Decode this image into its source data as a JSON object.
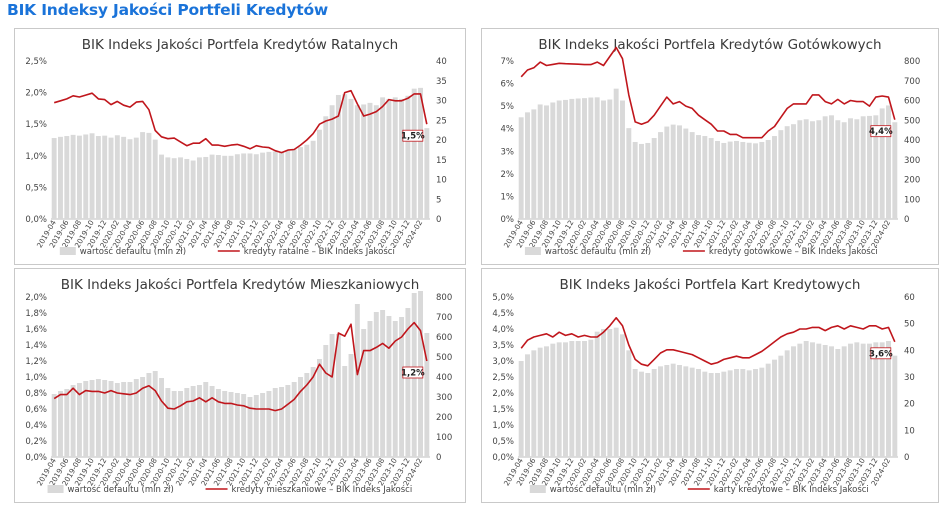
{
  "page": {
    "title": "BIK Indeksy Jakości Portfeli Kredytów"
  },
  "chart_data": [
    {
      "id": "ratalne",
      "type": "bar+line",
      "title": "BIK Indeks Jakości Portfela Kredytów Ratalnych",
      "categories": [
        "2019-04",
        "2019-05",
        "2019-06",
        "2019-07",
        "2019-08",
        "2019-09",
        "2019-10",
        "2019-11",
        "2019-12",
        "2020-01",
        "2020-02",
        "2020-03",
        "2020-04",
        "2020-05",
        "2020-06",
        "2020-07",
        "2020-08",
        "2020-09",
        "2020-10",
        "2020-11",
        "2020-12",
        "2021-01",
        "2021-02",
        "2021-03",
        "2021-04",
        "2021-05",
        "2021-06",
        "2021-07",
        "2021-08",
        "2021-09",
        "2021-10",
        "2021-11",
        "2021-12",
        "2022-01",
        "2022-02",
        "2022-03",
        "2022-04",
        "2022-05",
        "2022-06",
        "2022-07",
        "2022-08",
        "2022-09",
        "2022-10",
        "2022-11",
        "2022-12",
        "2023-01",
        "2023-02",
        "2023-03",
        "2023-04",
        "2023-05",
        "2023-06",
        "2023-07",
        "2023-08",
        "2023-09",
        "2023-10",
        "2023-11",
        "2023-12",
        "2024-01",
        "2024-02",
        "2024-03"
      ],
      "x_tick_labels": [
        "2019-04",
        "2019-06",
        "2019-08",
        "2019-10",
        "2019-12",
        "2020-02",
        "2020-04",
        "2020-06",
        "2020-08",
        "2020-10",
        "2020-12",
        "2021-02",
        "2021-04",
        "2021-06",
        "2021-08",
        "2021-10",
        "2021-12",
        "2022-02",
        "2022-04",
        "2022-06",
        "2022-08",
        "2022-10",
        "2022-12",
        "2023-02",
        "2023-04",
        "2023-06",
        "2023-08",
        "2023-10",
        "2023-12",
        "2024-02"
      ],
      "bars_name": "wartość defaultu (mln zł)",
      "line_name": "kredyty ratalne – BIK Indeks Jakości",
      "bar_values": [
        20.5,
        20.8,
        21,
        21.3,
        21.1,
        21.4,
        21.7,
        21,
        21.1,
        20.6,
        21.2,
        20.8,
        20.2,
        20.6,
        22,
        21.8,
        20.1,
        16.3,
        15.6,
        15.4,
        15.6,
        15.2,
        14.8,
        15.6,
        15.7,
        16.3,
        16.2,
        16,
        16,
        16.4,
        16.6,
        16.6,
        16.4,
        16.8,
        17,
        17.1,
        16.8,
        17.2,
        17.6,
        18.2,
        18.8,
        19.8,
        22.6,
        26,
        28.8,
        31.4,
        31.6,
        30.4,
        28.8,
        29,
        29.4,
        28.8,
        30.8,
        30.4,
        30.8,
        30.4,
        31.2,
        33,
        33.2,
        23
      ],
      "line_values": [
        1.84,
        1.87,
        1.9,
        1.95,
        1.93,
        1.96,
        1.99,
        1.9,
        1.89,
        1.81,
        1.86,
        1.8,
        1.77,
        1.85,
        1.86,
        1.73,
        1.4,
        1.3,
        1.27,
        1.28,
        1.22,
        1.16,
        1.2,
        1.2,
        1.27,
        1.17,
        1.17,
        1.15,
        1.17,
        1.18,
        1.15,
        1.11,
        1.16,
        1.14,
        1.13,
        1.08,
        1.05,
        1.09,
        1.1,
        1.17,
        1.25,
        1.35,
        1.5,
        1.55,
        1.58,
        1.63,
        2.0,
        2.03,
        1.82,
        1.63,
        1.66,
        1.7,
        1.78,
        1.89,
        1.87,
        1.87,
        1.91,
        1.98,
        1.98,
        1.5
      ],
      "y_left": {
        "min": 0,
        "max": 2.5,
        "ticks": [
          "0,0%",
          "0,5%",
          "1,0%",
          "1,5%",
          "2,0%",
          "2,5%"
        ]
      },
      "y_right": {
        "min": 0,
        "max": 40,
        "ticks": [
          "0",
          "5",
          "10",
          "15",
          "20",
          "25",
          "30",
          "35",
          "40"
        ]
      },
      "last_label": "1,5%"
    },
    {
      "id": "gotowkowe",
      "type": "bar+line",
      "title": "BIK Indeks Jakości Portfela Kredytów Gotówkowych",
      "categories": [
        "2019-04",
        "2019-05",
        "2019-06",
        "2019-07",
        "2019-08",
        "2019-09",
        "2019-10",
        "2019-11",
        "2019-12",
        "2020-01",
        "2020-02",
        "2020-03",
        "2020-04",
        "2020-05",
        "2020-06",
        "2020-07",
        "2020-08",
        "2020-09",
        "2020-10",
        "2020-11",
        "2020-12",
        "2021-01",
        "2021-02",
        "2021-03",
        "2021-04",
        "2021-05",
        "2021-06",
        "2021-07",
        "2021-08",
        "2021-09",
        "2021-10",
        "2021-11",
        "2021-12",
        "2022-01",
        "2022-02",
        "2022-03",
        "2022-04",
        "2022-05",
        "2022-06",
        "2022-07",
        "2022-08",
        "2022-09",
        "2022-10",
        "2022-11",
        "2022-12",
        "2023-01",
        "2023-02",
        "2023-03",
        "2023-04",
        "2023-05",
        "2023-06",
        "2023-07",
        "2023-08",
        "2023-09",
        "2023-10",
        "2023-11",
        "2023-12",
        "2024-01",
        "2024-02",
        "2024-03"
      ],
      "x_tick_labels": [
        "2019-04",
        "2019-06",
        "2019-08",
        "2019-10",
        "2019-12",
        "2020-02",
        "2020-04",
        "2020-06",
        "2020-08",
        "2020-10",
        "2020-12",
        "2021-02",
        "2021-04",
        "2021-06",
        "2021-08",
        "2021-10",
        "2021-12",
        "2022-02",
        "2022-04",
        "2022-06",
        "2022-08",
        "2022-10",
        "2022-12",
        "2023-02",
        "2023-04",
        "2023-06",
        "2023-08",
        "2023-10",
        "2023-12",
        "2024-02"
      ],
      "bars_name": "wartość defaultu (mln zł)",
      "line_name": "kredyty gotówkowe – BIK Indeks Jakości",
      "bar_values": [
        515,
        540,
        555,
        580,
        575,
        590,
        600,
        603,
        608,
        610,
        612,
        615,
        616,
        600,
        605,
        660,
        600,
        460,
        390,
        380,
        385,
        410,
        440,
        468,
        478,
        474,
        458,
        440,
        425,
        420,
        410,
        395,
        385,
        392,
        395,
        390,
        386,
        383,
        390,
        400,
        420,
        450,
        470,
        480,
        500,
        505,
        495,
        500,
        520,
        525,
        500,
        490,
        510,
        505,
        520,
        522,
        525,
        560,
        575,
        490
      ],
      "line_values": [
        6.3,
        6.6,
        6.7,
        6.95,
        6.8,
        6.85,
        6.9,
        6.88,
        6.87,
        6.86,
        6.84,
        6.84,
        6.95,
        6.8,
        7.2,
        7.6,
        7.1,
        5.5,
        4.3,
        4.2,
        4.3,
        4.6,
        5.0,
        5.4,
        5.1,
        5.2,
        5.0,
        4.9,
        4.6,
        4.4,
        4.2,
        3.9,
        3.9,
        3.75,
        3.75,
        3.6,
        3.6,
        3.6,
        3.6,
        3.9,
        4.1,
        4.5,
        4.9,
        5.1,
        5.1,
        5.1,
        5.5,
        5.5,
        5.2,
        5.1,
        5.3,
        5.1,
        5.25,
        5.2,
        5.2,
        5.0,
        5.4,
        5.45,
        5.4,
        4.4
      ],
      "y_left": {
        "min": 0,
        "max": 7,
        "ticks": [
          "0%",
          "1%",
          "2%",
          "3%",
          "4%",
          "5%",
          "6%",
          "7%"
        ]
      },
      "y_right": {
        "min": 0,
        "max": 800,
        "ticks": [
          "0",
          "100",
          "200",
          "300",
          "400",
          "500",
          "600",
          "700",
          "800"
        ]
      },
      "last_label": "4,4%"
    },
    {
      "id": "mieszkaniowe",
      "type": "bar+line",
      "title": "BIK Indeks Jakości Portfela Kredytów Mieszkaniowych",
      "categories": [
        "2019-04",
        "2019-05",
        "2019-06",
        "2019-07",
        "2019-08",
        "2019-09",
        "2019-10",
        "2019-11",
        "2019-12",
        "2020-01",
        "2020-02",
        "2020-03",
        "2020-04",
        "2020-05",
        "2020-06",
        "2020-07",
        "2020-08",
        "2020-09",
        "2020-10",
        "2020-11",
        "2020-12",
        "2021-01",
        "2021-02",
        "2021-03",
        "2021-04",
        "2021-05",
        "2021-06",
        "2021-07",
        "2021-08",
        "2021-09",
        "2021-10",
        "2021-11",
        "2021-12",
        "2022-01",
        "2022-02",
        "2022-03",
        "2022-04",
        "2022-05",
        "2022-06",
        "2022-07",
        "2022-08",
        "2022-09",
        "2022-10",
        "2022-11",
        "2022-12",
        "2023-01",
        "2023-02",
        "2023-03",
        "2023-04",
        "2023-05",
        "2023-06",
        "2023-07",
        "2023-08",
        "2023-09",
        "2023-10",
        "2023-11",
        "2023-12",
        "2024-01",
        "2024-02",
        "2024-03"
      ],
      "x_tick_labels": [
        "2019-04",
        "2019-06",
        "2019-08",
        "2019-10",
        "2019-12",
        "2020-02",
        "2020-04",
        "2020-06",
        "2020-08",
        "2020-10",
        "2020-12",
        "2021-02",
        "2021-04",
        "2021-06",
        "2021-08",
        "2021-10",
        "2021-12",
        "2022-02",
        "2022-04",
        "2022-06",
        "2022-08",
        "2022-10",
        "2022-12",
        "2023-02",
        "2023-04",
        "2023-06",
        "2023-08",
        "2023-10",
        "2023-12",
        "2024-02"
      ],
      "bars_name": "wartość defaultu (mln zł)",
      "line_name": "kredyty mieszkaniowe – BIK Indeks Jakości",
      "bar_values": [
        315,
        330,
        340,
        360,
        370,
        380,
        385,
        390,
        385,
        380,
        370,
        375,
        375,
        390,
        400,
        420,
        430,
        395,
        345,
        330,
        330,
        345,
        355,
        360,
        375,
        355,
        340,
        330,
        325,
        320,
        315,
        300,
        310,
        320,
        330,
        345,
        350,
        360,
        375,
        400,
        420,
        450,
        490,
        560,
        615,
        615,
        455,
        515,
        765,
        640,
        680,
        725,
        735,
        705,
        680,
        700,
        745,
        820,
        830,
        620
      ],
      "line_values": [
        0.73,
        0.78,
        0.78,
        0.86,
        0.78,
        0.83,
        0.82,
        0.82,
        0.8,
        0.83,
        0.8,
        0.79,
        0.78,
        0.8,
        0.86,
        0.89,
        0.83,
        0.7,
        0.61,
        0.6,
        0.64,
        0.69,
        0.7,
        0.74,
        0.69,
        0.74,
        0.69,
        0.67,
        0.67,
        0.65,
        0.64,
        0.61,
        0.6,
        0.6,
        0.6,
        0.58,
        0.6,
        0.66,
        0.72,
        0.82,
        0.9,
        1.0,
        1.16,
        1.05,
        1.0,
        1.55,
        1.51,
        1.66,
        1.03,
        1.33,
        1.33,
        1.37,
        1.42,
        1.36,
        1.45,
        1.5,
        1.6,
        1.68,
        1.58,
        1.2
      ],
      "y_left": {
        "min": 0,
        "max": 2.0,
        "ticks": [
          "0,0%",
          "0,2%",
          "0,4%",
          "0,6%",
          "0,8%",
          "1,0%",
          "1,2%",
          "1,4%",
          "1,6%",
          "1,8%",
          "2,0%"
        ]
      },
      "y_right": {
        "min": 0,
        "max": 800,
        "ticks": [
          "0",
          "100",
          "200",
          "300",
          "400",
          "500",
          "600",
          "700",
          "800"
        ]
      },
      "last_label": "1,2%"
    },
    {
      "id": "karty",
      "type": "bar+line",
      "title": "BIK Indeks Jakości Portfela Kart Kredytowych",
      "categories": [
        "2019-04",
        "2019-05",
        "2019-06",
        "2019-07",
        "2019-08",
        "2019-09",
        "2019-10",
        "2019-11",
        "2019-12",
        "2020-01",
        "2020-02",
        "2020-03",
        "2020-04",
        "2020-05",
        "2020-06",
        "2020-07",
        "2020-08",
        "2020-09",
        "2020-10",
        "2020-11",
        "2020-12",
        "2021-01",
        "2021-02",
        "2021-03",
        "2021-04",
        "2021-05",
        "2021-06",
        "2021-07",
        "2021-08",
        "2021-09",
        "2021-10",
        "2021-11",
        "2021-12",
        "2022-01",
        "2022-02",
        "2022-03",
        "2022-04",
        "2022-05",
        "2022-06",
        "2022-07",
        "2022-08",
        "2022-09",
        "2022-10",
        "2022-11",
        "2022-12",
        "2023-01",
        "2023-02",
        "2023-03",
        "2023-04",
        "2023-05",
        "2023-06",
        "2023-07",
        "2023-08",
        "2023-09",
        "2023-10",
        "2023-11",
        "2023-12",
        "2024-01",
        "2024-02",
        "2024-03"
      ],
      "x_tick_labels": [
        "2019-04",
        "2019-06",
        "2019-08",
        "2019-10",
        "2019-12",
        "2020-02",
        "2020-04",
        "2020-06",
        "2020-08",
        "2020-10",
        "2020-12",
        "2021-02",
        "2021-04",
        "2021-06",
        "2021-08",
        "2021-10",
        "2021-12",
        "2022-02",
        "2022-04",
        "2022-06",
        "2022-08",
        "2022-10",
        "2022-12",
        "2023-02",
        "2023-04",
        "2023-06",
        "2023-08",
        "2023-10",
        "2023-12",
        "2024-02"
      ],
      "bars_name": "wartość defaultu (mln zł)",
      "line_name": "karty kredytowe – BIK Indeks Jakości",
      "bar_values": [
        36,
        38.5,
        40,
        41,
        41.5,
        42.5,
        43,
        43,
        43.5,
        43.5,
        43.5,
        44,
        47,
        48,
        48,
        48.5,
        46,
        40,
        33,
        32,
        31.5,
        33,
        34,
        34.5,
        35,
        34.5,
        34,
        33.5,
        33,
        32,
        31.5,
        31.5,
        32,
        32.5,
        33,
        33,
        32.5,
        33,
        33.5,
        35,
        36.5,
        38,
        40,
        41.5,
        42.5,
        43.5,
        43,
        42.5,
        42,
        41.5,
        40.5,
        41.5,
        42.5,
        43,
        42.5,
        42.5,
        43,
        43,
        43.5,
        38
      ],
      "line_values": [
        3.4,
        3.65,
        3.75,
        3.8,
        3.85,
        3.75,
        3.9,
        3.8,
        3.85,
        3.75,
        3.8,
        3.75,
        3.75,
        3.9,
        4.1,
        4.35,
        4.1,
        3.5,
        3.05,
        2.9,
        2.85,
        3.05,
        3.25,
        3.35,
        3.35,
        3.3,
        3.25,
        3.2,
        3.1,
        3.0,
        2.9,
        2.95,
        3.05,
        3.1,
        3.15,
        3.1,
        3.1,
        3.2,
        3.3,
        3.45,
        3.6,
        3.75,
        3.85,
        3.9,
        4.0,
        4.0,
        4.05,
        4.05,
        3.95,
        4.05,
        4.1,
        4.0,
        4.1,
        4.05,
        4.0,
        4.1,
        4.1,
        4.0,
        4.05,
        3.6
      ],
      "y_left": {
        "min": 0,
        "max": 5,
        "ticks": [
          "0,0%",
          "0,5%",
          "1,0%",
          "1,5%",
          "2,0%",
          "2,5%",
          "3,0%",
          "3,5%",
          "4,0%",
          "4,5%",
          "5,0%"
        ]
      },
      "y_right": {
        "min": 0,
        "max": 60,
        "ticks": [
          "0",
          "10",
          "20",
          "30",
          "40",
          "50",
          "60"
        ]
      },
      "last_label": "3,6%"
    }
  ]
}
